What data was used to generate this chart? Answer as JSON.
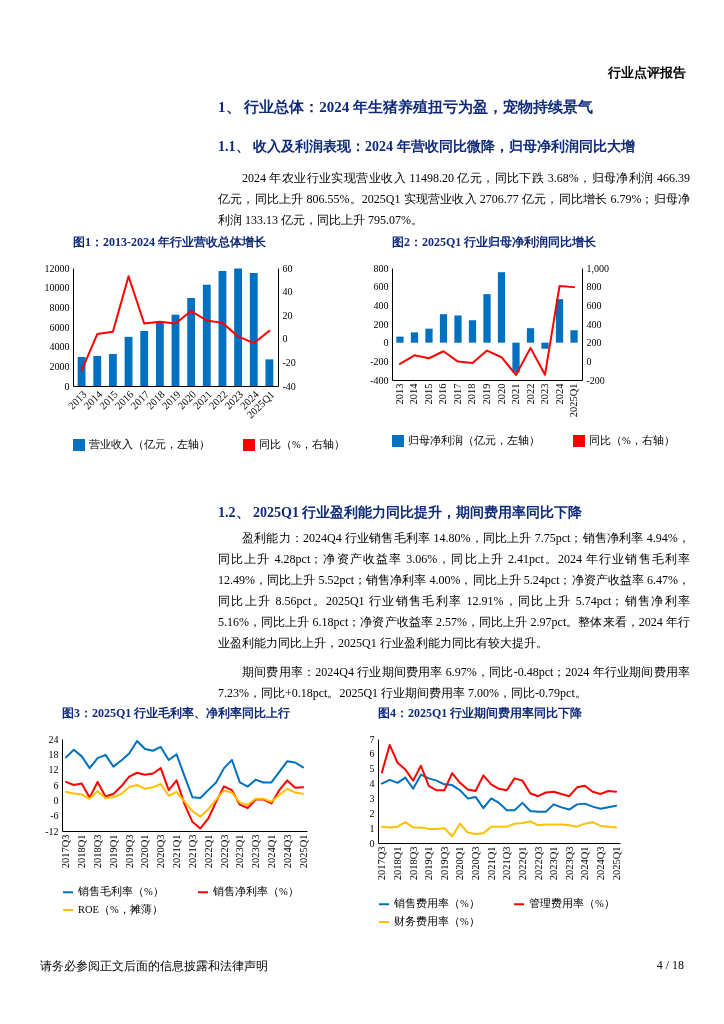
{
  "chart_data": [
    {
      "type": "other",
      "title": "1、 行业总体：2024 年生猪养殖扭亏为盈，宠物持续景气",
      "subtitle": "1.1、 收入及利润表现：2024 年营收同比微降，归母净利润同比大增",
      "annotations": [
        "行业点评报告",
        "2024 年农业行业实现营业收入 11498.20 亿元，同比下跌 3.68%，归母净利润 466.39 亿元，同比上升 806.55%。2025Q1 实现营业收入 2706.77 亿元，同比增长 6.79%；归母净利润 133.13 亿元，同比上升 795.07%。"
      ]
    },
    {
      "type": "bar",
      "title": "图1：2013-2024 年行业营收总体增长",
      "categories": [
        "2013",
        "2014",
        "2015",
        "2016",
        "2017",
        "2018",
        "2019",
        "2020",
        "2021",
        "2022",
        "2023",
        "2024",
        "2025Q1"
      ],
      "legend": "bottom",
      "ylim": [
        0,
        12000
      ],
      "yticks": [
        0,
        2000,
        4000,
        6000,
        8000,
        10000,
        12000
      ],
      "y2lim": [
        -40,
        60
      ],
      "y2ticks": [
        -40,
        -20,
        0,
        20,
        40,
        60
      ],
      "series": [
        {
          "name": "营业收入（亿元，左轴）",
          "type": "bar",
          "color": "#0070c0",
          "values": [
            2950,
            3050,
            3250,
            5000,
            5600,
            6550,
            7250,
            8950,
            10300,
            11700,
            11950,
            11498.2,
            2706.77
          ]
        },
        {
          "name": "同比（%，右轴）",
          "type": "line",
          "axis": "y2",
          "color": "#ff0000",
          "values": [
            -27,
            4,
            6,
            53,
            13,
            14.5,
            13,
            23.5,
            15.5,
            13.5,
            2,
            -3.68,
            6.79
          ]
        }
      ]
    },
    {
      "type": "bar",
      "title": "图2：2025Q1 行业归母净利润同比增长",
      "categories": [
        "2013",
        "2014",
        "2015",
        "2016",
        "2017",
        "2018",
        "2019",
        "2020",
        "2021",
        "2022",
        "2023",
        "2024",
        "2025Q1"
      ],
      "legend": "bottom",
      "ylim": [
        -400,
        800
      ],
      "yticks": [
        -400,
        -200,
        0,
        200,
        400,
        600,
        800
      ],
      "y2lim": [
        -200,
        1000
      ],
      "y2ticks": [
        -200,
        0,
        200,
        400,
        600,
        800,
        {
          "value": 1000,
          "label": "1,000"
        }
      ],
      "series": [
        {
          "name": "归母净利润（亿元，左轴）",
          "type": "bar",
          "color": "#0070c0",
          "values": [
            65,
            110,
            150,
            305,
            290,
            240,
            520,
            755,
            -320,
            155,
            -65,
            466.39,
            133.13
          ]
        },
        {
          "name": "同比（%，右轴）",
          "type": "line",
          "axis": "y2",
          "color": "#ff0000",
          "values": [
            -28,
            65,
            33,
            108,
            -3,
            -17,
            115,
            44,
            -146,
            144,
            -143,
            806.55,
            795.07
          ]
        }
      ]
    },
    {
      "type": "other",
      "title": "1.2、 2025Q1 行业盈利能力同比提升，期间费用率同比下降",
      "annotations": [
        "盈利能力：2024Q4 行业销售毛利率 14.80%，同比上升 7.75pct；销售净利率 4.94%，同比上升 4.28pct；净资产收益率 3.06%，同比上升 2.41pct。2024 年行业销售毛利率 12.49%，同比上升 5.52pct；销售净利率 4.00%，同比上升 5.24pct；净资产收益率 6.47%，同比上升 8.56pct。2025Q1 行业销售毛利率 12.91%，同比上升 5.74pct；销售净利率 5.16%，同比上升 6.18pct；净资产收益率 2.57%，同比上升 2.97pct。整体来看，2024 年行业盈利能力同比上升，2025Q1 行业盈利能力同比有较大提升。",
        "期间费用率：2024Q4 行业期间费用率 6.97%，同比-0.48pct；2024 年行业期间费用率 7.23%，同比+0.18pct。2025Q1 行业期间费用率 7.00%，同比-0.79pct。"
      ]
    },
    {
      "type": "line",
      "title": "图3：2025Q1 行业毛利率、净利率同比上行",
      "categories": [
        "2017Q3",
        null,
        "2018Q1",
        null,
        "2018Q3",
        null,
        "2019Q1",
        null,
        "2019Q3",
        null,
        "2020Q1",
        null,
        "2020Q3",
        null,
        "2021Q1",
        null,
        "2021Q3",
        null,
        "2022Q1",
        null,
        "2022Q3",
        null,
        "2023Q1",
        null,
        "2023Q3",
        null,
        "2024Q1",
        null,
        "2024Q3",
        null,
        "2025Q1"
      ],
      "legend": "bottom",
      "ylim": [
        -12,
        24
      ],
      "yticks": [
        -12,
        -6,
        0,
        6,
        12,
        18,
        24
      ],
      "series": [
        {
          "name": "销售毛利率（%）",
          "color": "#0070c0",
          "values": [
            16.8,
            19.8,
            17.2,
            12.6,
            16.5,
            17.8,
            13.2,
            15.6,
            18.3,
            23.2,
            20.1,
            19.4,
            20.9,
            15.8,
            18.0,
            9.5,
            1.2,
            0.9,
            4.0,
            7.0,
            12.6,
            15.8,
            7.0,
            5.4,
            8.1,
            7.0,
            7.0,
            11.1,
            15.3,
            14.8,
            12.91
          ]
        },
        {
          "name": "销售净利率（%）",
          "color": "#ff0000",
          "values": [
            7.2,
            6.0,
            6.6,
            1.0,
            7.2,
            1.5,
            2.5,
            5.5,
            9.3,
            10.8,
            10.0,
            10.5,
            12.6,
            4.0,
            7.8,
            -1.5,
            -8.4,
            -11,
            -7.2,
            -0.5,
            5.5,
            4.0,
            -1.7,
            -3.0,
            0.3,
            0.3,
            -1.2,
            4.0,
            7.8,
            4.94,
            5.16
          ]
        },
        {
          "name": "ROE（%，摊薄）",
          "color": "#ffc000",
          "values": [
            3.3,
            2.7,
            2.3,
            0.6,
            3.6,
            0.9,
            1.2,
            2.5,
            5.2,
            6.0,
            4.5,
            5.1,
            6.4,
            1.8,
            3.3,
            -0.5,
            -4.2,
            -6.4,
            -3.5,
            0.3,
            3.9,
            3.0,
            -0.9,
            -1.7,
            0.6,
            0.6,
            -0.6,
            2.1,
            4.5,
            3.06,
            2.57
          ]
        }
      ]
    },
    {
      "type": "line",
      "title": "图4：2025Q1 行业期间费用率同比下降",
      "categories": [
        "2017Q3",
        null,
        "2018Q1",
        null,
        "2018Q3",
        null,
        "2019Q1",
        null,
        "2019Q3",
        null,
        "2020Q1",
        null,
        "2020Q3",
        null,
        "2021Q1",
        null,
        "2021Q3",
        null,
        "2022Q1",
        null,
        "2022Q3",
        null,
        "2023Q1",
        null,
        "2023Q3",
        null,
        "2024Q1",
        null,
        "2024Q3",
        null,
        "2025Q1"
      ],
      "legend": "bottom",
      "ylim": [
        0,
        7
      ],
      "yticks": [
        0,
        1,
        2,
        3,
        4,
        5,
        6,
        7
      ],
      "series": [
        {
          "name": "销售费用率（%）",
          "color": "#0070c0",
          "values": [
            4.0,
            4.25,
            4.05,
            4.4,
            3.65,
            4.6,
            4.35,
            4.2,
            3.95,
            3.9,
            3.55,
            3.0,
            3.1,
            2.35,
            3.0,
            2.7,
            2.2,
            2.2,
            2.7,
            2.15,
            2.1,
            2.1,
            2.6,
            2.4,
            2.25,
            2.6,
            2.65,
            2.45,
            2.3,
            2.4,
            2.5
          ]
        },
        {
          "name": "管理费用率（%）",
          "color": "#ff0000",
          "values": [
            4.75,
            6.6,
            5.4,
            4.95,
            4.2,
            5.2,
            3.85,
            3.55,
            3.55,
            4.7,
            4.05,
            3.6,
            3.5,
            4.55,
            3.95,
            3.65,
            3.55,
            4.35,
            4.2,
            3.35,
            3.15,
            3.4,
            3.45,
            3.3,
            3.15,
            3.75,
            3.85,
            3.45,
            3.3,
            3.5,
            3.45
          ]
        },
        {
          "name": "财务费用率（%）",
          "color": "#ffc000",
          "values": [
            1.1,
            1.05,
            1.1,
            1.4,
            1.05,
            1.05,
            0.95,
            0.95,
            1.0,
            0.45,
            1.3,
            0.7,
            0.6,
            0.65,
            1.1,
            1.1,
            1.1,
            1.3,
            1.35,
            1.45,
            1.2,
            1.25,
            1.25,
            1.25,
            1.2,
            1.1,
            1.3,
            1.4,
            1.15,
            1.1,
            1.05
          ]
        }
      ]
    },
    {
      "type": "other",
      "annotations": [
        "请务必参阅正文后面的信息披露和法律声明",
        "4 / 18"
      ]
    }
  ]
}
